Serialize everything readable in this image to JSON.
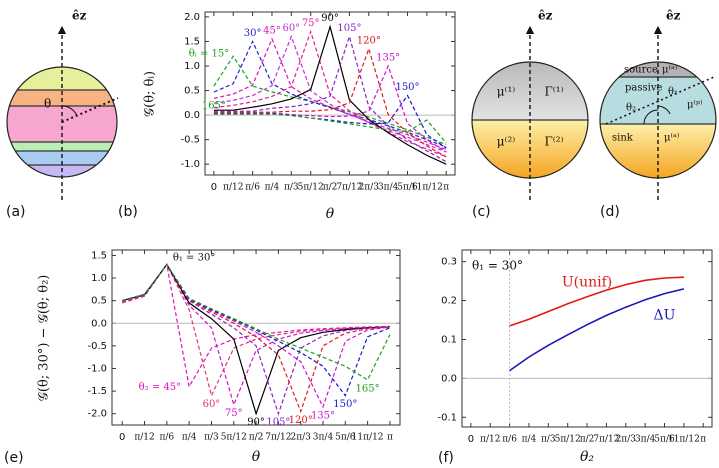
{
  "chart_data": [
    {
      "type": "line",
      "x": [
        0,
        0.2618,
        0.5236,
        0.7854,
        1.0472,
        1.309,
        1.5708,
        1.8326,
        2.0944,
        2.3562,
        2.618,
        2.8798,
        3.1416
      ],
      "xlim": [
        -0.12,
        3.26
      ],
      "ylim": [
        -1.22,
        2.1
      ],
      "xticks": [
        0,
        {
          "value": 0.2618,
          "label": "π/12"
        },
        {
          "value": 0.5236,
          "label": "π/6"
        },
        {
          "value": 0.7854,
          "label": "π/4"
        },
        {
          "value": 1.0472,
          "label": "π/3"
        },
        {
          "value": 1.309,
          "label": "5π/12"
        },
        {
          "value": 1.5708,
          "label": "π/2"
        },
        {
          "value": 1.8326,
          "label": "7π/12"
        },
        {
          "value": 2.0944,
          "label": "2π/3"
        },
        {
          "value": 2.3562,
          "label": "3π/4"
        },
        {
          "value": 2.618,
          "label": "5π/6"
        },
        {
          "value": 2.8798,
          "label": "11π/12"
        },
        {
          "value": 3.1416,
          "label": "π"
        }
      ],
      "yticks": [
        {
          "value": -1,
          "label": "-1.0"
        },
        -0.5,
        {
          "value": 0,
          "label": "0.0"
        },
        0.5,
        {
          "value": 1,
          "label": "1.0"
        },
        1.5,
        {
          "value": 2,
          "label": "2.0"
        }
      ],
      "xlabel": "θ",
      "ylabel": "𝒢(θ; θᵢ)",
      "zero_line": true,
      "series": [
        {
          "name": "θᵢ = 15°",
          "color": "#1f9e1f",
          "line_style": "dashed",
          "values": [
            0.59,
            1.2,
            0.59,
            0.47,
            0.37,
            0.28,
            0.17,
            0.07,
            -0.04,
            -0.17,
            -0.3,
            -0.45,
            -0.6
          ]
        },
        {
          "name": "30°",
          "color": "#2222d0",
          "line_style": "dashed",
          "values": [
            0.47,
            0.64,
            1.5,
            0.64,
            0.43,
            0.28,
            0.15,
            0.02,
            -0.09,
            -0.22,
            -0.35,
            -0.5,
            -0.65
          ]
        },
        {
          "name": "45°",
          "color": "#e010c0",
          "line_style": "dashed",
          "values": [
            0.34,
            0.43,
            0.61,
            1.55,
            0.58,
            0.33,
            0.16,
            0.01,
            -0.14,
            -0.27,
            -0.4,
            -0.55,
            -0.7
          ]
        },
        {
          "name": "60°",
          "color": "#c030e0",
          "line_style": "dashed",
          "values": [
            0.24,
            0.3,
            0.4,
            0.6,
            1.6,
            0.5,
            0.22,
            0.02,
            -0.15,
            -0.32,
            -0.45,
            -0.6,
            -0.75
          ]
        },
        {
          "name": "75°",
          "color": "#e8189a",
          "line_style": "dashed",
          "values": [
            0.15,
            0.2,
            0.27,
            0.38,
            0.58,
            1.7,
            0.42,
            0.09,
            -0.15,
            -0.34,
            -0.54,
            -0.69,
            -0.85
          ]
        },
        {
          "name": "90°",
          "color": "#000000",
          "line_style": "solid",
          "values": [
            0.1,
            0.1,
            0.16,
            0.23,
            0.33,
            0.52,
            1.8,
            0.31,
            -0.09,
            -0.36,
            -0.6,
            -0.82,
            -1.0
          ]
        },
        {
          "name": "105°",
          "color": "#8a1fc8",
          "line_style": "dashed",
          "values": [
            0.08,
            0.08,
            0.08,
            0.14,
            0.17,
            0.23,
            0.39,
            1.6,
            0.17,
            -0.22,
            -0.5,
            -0.73,
            -0.95
          ]
        },
        {
          "name": "120°",
          "color": "#e01818",
          "line_style": "dashed",
          "values": [
            0.06,
            0.06,
            0.06,
            0.06,
            0.08,
            0.08,
            0.11,
            0.25,
            1.35,
            0.01,
            -0.36,
            -0.63,
            -0.85
          ]
        },
        {
          "name": "135°",
          "color": "#d010d0",
          "line_style": "dashed",
          "values": [
            0.04,
            0.04,
            0.04,
            0.04,
            0.01,
            -0.01,
            -0.03,
            -0.02,
            0.08,
            1.0,
            -0.17,
            -0.5,
            -0.75
          ]
        },
        {
          "name": "150°",
          "color": "#1818c8",
          "line_style": "dashed",
          "values": [
            0.03,
            0.03,
            0.03,
            0.03,
            0,
            -0.06,
            -0.1,
            -0.15,
            -0.18,
            -0.16,
            0.4,
            -0.4,
            -0.67
          ]
        },
        {
          "name": "165°",
          "color": "#1f9e1f",
          "line_style": "dashed",
          "values": [
            0.02,
            0.02,
            0.02,
            0.02,
            -0.01,
            -0.06,
            -0.12,
            -0.18,
            -0.24,
            -0.3,
            -0.34,
            -0.1,
            -0.57
          ]
        }
      ]
    },
    {
      "type": "line",
      "x": [
        0,
        0.2618,
        0.5236,
        0.7854,
        1.0472,
        1.309,
        1.5708,
        1.8326,
        2.0944,
        2.3562,
        2.618,
        2.8798,
        3.1416
      ],
      "xlim": [
        -0.12,
        3.26
      ],
      "ylim": [
        -2.25,
        1.62
      ],
      "xticks": [
        0,
        {
          "value": 0.2618,
          "label": "π/12"
        },
        {
          "value": 0.5236,
          "label": "π/6"
        },
        {
          "value": 0.7854,
          "label": "π/4"
        },
        {
          "value": 1.0472,
          "label": "π/3"
        },
        {
          "value": 1.309,
          "label": "5π/12"
        },
        {
          "value": 1.5708,
          "label": "π/2"
        },
        {
          "value": 1.8326,
          "label": "7π/12"
        },
        {
          "value": 2.0944,
          "label": "2π/3"
        },
        {
          "value": 2.3562,
          "label": "3π/4"
        },
        {
          "value": 2.618,
          "label": "5π/6"
        },
        {
          "value": 2.8798,
          "label": "11π/12"
        },
        {
          "value": 3.1416,
          "label": "π"
        }
      ],
      "yticks": [
        {
          "value": -2,
          "label": "-2.0"
        },
        -1.5,
        {
          "value": -1,
          "label": "-1.0"
        },
        -0.5,
        {
          "value": 0,
          "label": "0.0"
        },
        0.5,
        {
          "value": 1,
          "label": "1.0"
        },
        1.5
      ],
      "xlabel": "θ",
      "ylabel": "𝒢(θ; 30°) − 𝒢(θ; θ₂)",
      "annotation": "θ₁ = 30°",
      "zero_line": true,
      "series": [
        {
          "name": "θ₂ = 45°",
          "color": "#e010c0",
          "line_style": "dashed",
          "values": [
            0.45,
            0.6,
            1.3,
            -1.4,
            -0.55,
            -0.35,
            -0.25,
            -0.2,
            -0.15,
            -0.12,
            -0.1,
            -0.08,
            -0.07
          ]
        },
        {
          "name": "60°",
          "color": "#e8307a",
          "line_style": "dashed",
          "values": [
            0.45,
            0.6,
            1.3,
            0.3,
            -1.6,
            -0.55,
            -0.35,
            -0.25,
            -0.18,
            -0.14,
            -0.11,
            -0.09,
            -0.08
          ]
        },
        {
          "name": "75°",
          "color": "#d010d0",
          "line_style": "dashed",
          "values": [
            0.48,
            0.62,
            1.3,
            0.4,
            -0.1,
            -1.8,
            -0.6,
            -0.35,
            -0.22,
            -0.16,
            -0.12,
            -0.1,
            -0.09
          ]
        },
        {
          "name": "90°",
          "color": "#000000",
          "line_style": "solid",
          "values": [
            0.5,
            0.63,
            1.3,
            0.45,
            0.1,
            -0.35,
            -2.0,
            -0.6,
            -0.32,
            -0.2,
            -0.14,
            -0.1,
            -0.08
          ]
        },
        {
          "name": "105°",
          "color": "#8a1fc8",
          "line_style": "dashed",
          "values": [
            0.5,
            0.63,
            1.3,
            0.5,
            0.2,
            -0.1,
            -0.5,
            -2.0,
            -0.55,
            -0.28,
            -0.16,
            -0.1,
            -0.08
          ]
        },
        {
          "name": "120°",
          "color": "#e01818",
          "line_style": "dashed",
          "values": [
            0.5,
            0.64,
            1.3,
            0.52,
            0.25,
            0,
            -0.3,
            -0.7,
            -1.95,
            -0.5,
            -0.22,
            -0.12,
            -0.08
          ]
        },
        {
          "name": "135°",
          "color": "#d010d0",
          "line_style": "dashed",
          "values": [
            0.5,
            0.64,
            1.3,
            0.53,
            0.28,
            0.05,
            -0.2,
            -0.5,
            -0.85,
            -1.85,
            -0.4,
            -0.15,
            -0.08
          ]
        },
        {
          "name": "150°",
          "color": "#1818c8",
          "line_style": "dashed",
          "values": [
            0.5,
            0.64,
            1.3,
            0.54,
            0.3,
            0.08,
            -0.15,
            -0.4,
            -0.65,
            -0.95,
            -1.6,
            -0.3,
            -0.1
          ]
        },
        {
          "name": "165°",
          "color": "#1f9e1f",
          "line_style": "dashed",
          "values": [
            0.5,
            0.64,
            1.3,
            0.55,
            0.32,
            0.1,
            -0.12,
            -0.35,
            -0.55,
            -0.75,
            -0.95,
            -1.25,
            -0.25
          ]
        }
      ]
    },
    {
      "type": "line",
      "x": [
        0.5236,
        0.7854,
        1.0472,
        1.309,
        1.5708,
        1.8326,
        2.0944,
        2.3562,
        2.618,
        2.8798
      ],
      "xlim": [
        -0.12,
        3.26
      ],
      "ylim": [
        -0.125,
        0.33
      ],
      "xticks": [
        0,
        {
          "value": 0.2618,
          "label": "π/12"
        },
        {
          "value": 0.5236,
          "label": "π/6"
        },
        {
          "value": 0.7854,
          "label": "π/4"
        },
        {
          "value": 1.0472,
          "label": "π/3"
        },
        {
          "value": 1.309,
          "label": "5π/12"
        },
        {
          "value": 1.5708,
          "label": "π/2"
        },
        {
          "value": 1.8326,
          "label": "7π/12"
        },
        {
          "value": 2.0944,
          "label": "2π/3"
        },
        {
          "value": 2.3562,
          "label": "3π/4"
        },
        {
          "value": 2.618,
          "label": "5π/6"
        },
        {
          "value": 2.8798,
          "label": "11π/12"
        },
        {
          "value": 3.1416,
          "label": "π"
        }
      ],
      "yticks": [
        -0.1,
        {
          "value": 0,
          "label": "0.0"
        },
        0.1,
        0.2,
        0.3
      ],
      "xlabel": "θ₂",
      "annotation": "θ₁ = 30°",
      "zero_line": true,
      "series": [
        {
          "name": "U(unif)",
          "color": "#e01818",
          "line_style": "solid",
          "values": [
            0.135,
            0.152,
            0.172,
            0.192,
            0.21,
            0.227,
            0.241,
            0.252,
            0.258,
            0.26
          ]
        },
        {
          "name": "ΔU",
          "color": "#1818b8",
          "line_style": "solid",
          "values": [
            0.02,
            0.055,
            0.085,
            0.112,
            0.138,
            0.162,
            0.183,
            0.202,
            0.218,
            0.23
          ]
        }
      ]
    }
  ],
  "diagrams": {
    "a": {
      "axis": "êz",
      "angle": "θ"
    },
    "c": {
      "axis": "êz",
      "mu1": "μ⁽¹⁾",
      "gamma1": "Γ⁽¹⁾",
      "mu2": "μ⁽²⁾",
      "gamma2": "Γ⁽²⁾"
    },
    "d": {
      "axis": "êz",
      "source": "source",
      "mu_source": "μ⁽ᵃ⁾",
      "passive": "passive",
      "theta1": "θ₁",
      "theta2": "θ₂",
      "mu_passive": "μ⁽ᵖ⁾",
      "sink": "sink",
      "mu_sink": "μ⁽ᵃ⁾"
    }
  },
  "panel_labels": [
    "(a)",
    "(b)",
    "(c)",
    "(d)",
    "(e)",
    "(f)"
  ]
}
